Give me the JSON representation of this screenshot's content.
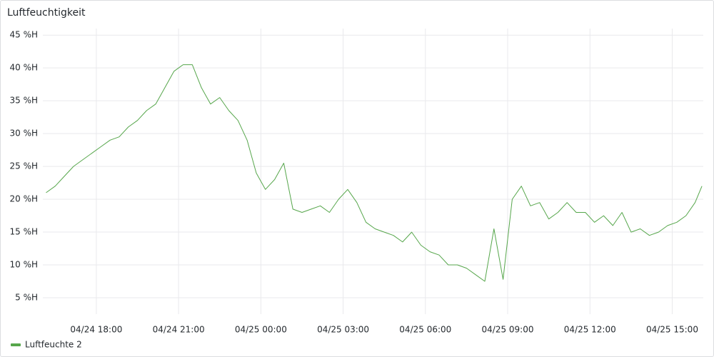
{
  "chart_data": {
    "type": "line",
    "title": "Luftfeuchtigkeit",
    "x": [
      "04/24 16:10",
      "04/24 16:30",
      "04/24 16:50",
      "04/24 17:10",
      "04/24 17:30",
      "04/24 17:50",
      "04/24 18:10",
      "04/24 18:30",
      "04/24 18:50",
      "04/24 19:10",
      "04/24 19:30",
      "04/24 19:50",
      "04/24 20:10",
      "04/24 20:30",
      "04/24 20:50",
      "04/24 21:10",
      "04/24 21:30",
      "04/24 21:50",
      "04/24 22:10",
      "04/24 22:30",
      "04/24 22:50",
      "04/24 23:10",
      "04/24 23:30",
      "04/24 23:50",
      "04/25 00:10",
      "04/25 00:30",
      "04/25 00:50",
      "04/25 01:10",
      "04/25 01:30",
      "04/25 01:50",
      "04/25 02:10",
      "04/25 02:30",
      "04/25 02:50",
      "04/25 03:10",
      "04/25 03:30",
      "04/25 03:50",
      "04/25 04:10",
      "04/25 04:30",
      "04/25 04:50",
      "04/25 05:10",
      "04/25 05:30",
      "04/25 05:50",
      "04/25 06:10",
      "04/25 06:30",
      "04/25 06:50",
      "04/25 07:10",
      "04/25 07:30",
      "04/25 07:50",
      "04/25 08:10",
      "04/25 08:30",
      "04/25 08:50",
      "04/25 09:10",
      "04/25 09:30",
      "04/25 09:50",
      "04/25 10:10",
      "04/25 10:30",
      "04/25 10:50",
      "04/25 11:10",
      "04/25 11:30",
      "04/25 11:50",
      "04/25 12:10",
      "04/25 12:30",
      "04/25 12:50",
      "04/25 13:10",
      "04/25 13:30",
      "04/25 13:50",
      "04/25 14:10",
      "04/25 14:30",
      "04/25 14:50",
      "04/25 15:10",
      "04/25 15:30",
      "04/25 15:50",
      "04/25 16:05"
    ],
    "series": [
      {
        "name": "Luftfeuchte 2",
        "color": "#56a64b",
        "values": [
          21,
          22,
          23.5,
          25,
          26,
          27,
          28,
          29,
          29.5,
          31,
          32,
          33.5,
          34.5,
          37,
          39.5,
          40.5,
          40.5,
          37,
          34.5,
          35.5,
          33.5,
          32,
          29,
          24,
          21.5,
          23,
          25.5,
          18.5,
          18,
          18.5,
          19,
          18,
          20,
          21.5,
          19.5,
          16.5,
          15.5,
          15,
          14.5,
          13.5,
          15,
          13,
          12,
          11.5,
          10,
          10,
          9.5,
          8.5,
          7.5,
          15.5,
          7.8,
          20,
          22,
          19,
          19.5,
          17,
          18,
          19.5,
          18,
          18,
          16.5,
          17.5,
          16,
          18,
          15,
          15.5,
          14.5,
          15,
          16,
          16.5,
          17.5,
          19.5,
          22
        ]
      }
    ],
    "xlim": [
      "04/24 16:03",
      "04/25 16:08"
    ],
    "xticks": [
      "04/24 18:00",
      "04/24 21:00",
      "04/25 00:00",
      "04/25 03:00",
      "04/25 06:00",
      "04/25 09:00",
      "04/25 12:00",
      "04/25 15:00"
    ],
    "ylim": [
      2.5,
      46
    ],
    "yticks": [
      {
        "value": 5,
        "label": "5 %H"
      },
      {
        "value": 10,
        "label": "10 %H"
      },
      {
        "value": 15,
        "label": "15 %H"
      },
      {
        "value": 20,
        "label": "20 %H"
      },
      {
        "value": 25,
        "label": "25 %H"
      },
      {
        "value": 30,
        "label": "30 %H"
      },
      {
        "value": 35,
        "label": "35 %H"
      },
      {
        "value": 40,
        "label": "40 %H"
      },
      {
        "value": 45,
        "label": "45 %H"
      }
    ],
    "grid": true
  }
}
